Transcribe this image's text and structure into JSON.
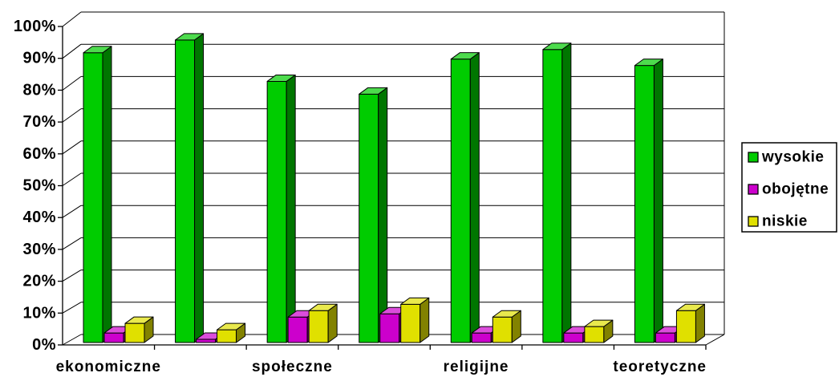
{
  "chart_data": {
    "type": "bar",
    "style": "3d-clustered-column",
    "categories": [
      "ekonomiczne",
      "",
      "społeczne",
      "",
      "religijne",
      "",
      "teoretyczne"
    ],
    "series": [
      {
        "name": "wysokie",
        "color": "#00CC00",
        "values": [
          91,
          95,
          82,
          78,
          89,
          92,
          87
        ]
      },
      {
        "name": "obojętne",
        "color": "#CC00CC",
        "values": [
          3,
          1,
          8,
          9,
          3,
          3,
          3
        ]
      },
      {
        "name": "niskie",
        "color": "#E0E000",
        "values": [
          6,
          4,
          10,
          12,
          8,
          5,
          10
        ]
      }
    ],
    "yticks": [
      "0%",
      "10%",
      "20%",
      "30%",
      "40%",
      "50%",
      "60%",
      "70%",
      "80%",
      "90%",
      "100%"
    ],
    "ylim": [
      0,
      100
    ],
    "unit": "%",
    "grid": true,
    "legend_position": "right"
  }
}
